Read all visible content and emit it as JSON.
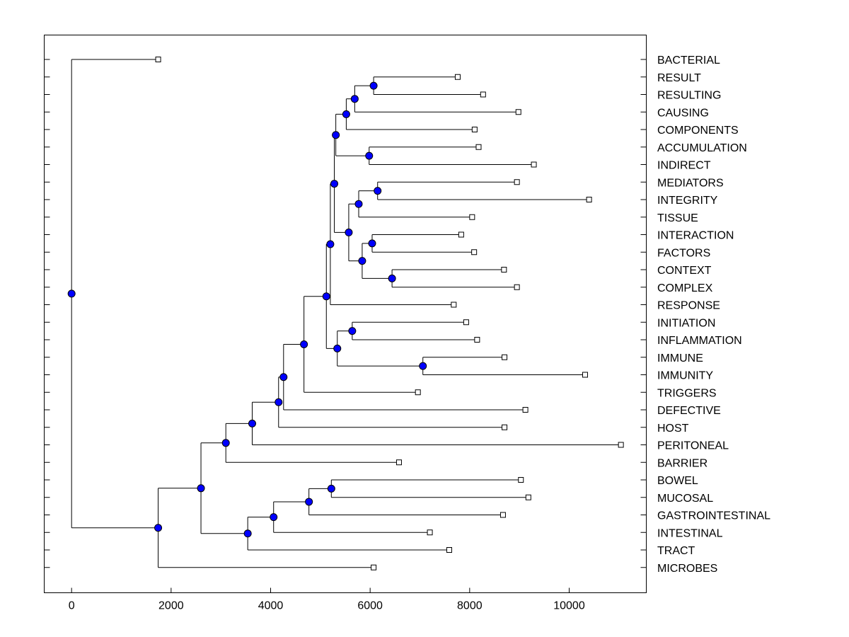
{
  "chart_data": {
    "type": "dendrogram",
    "orientation": "horizontal",
    "xlim": [
      -550,
      11550
    ],
    "xticks": [
      0,
      2000,
      4000,
      6000,
      8000,
      10000
    ],
    "xtick_labels": [
      "0",
      "2000",
      "4000",
      "6000",
      "8000",
      "10000"
    ],
    "leaves": [
      {
        "label": "BACTERIAL",
        "x": 1740
      },
      {
        "label": "RESULT",
        "x": 7760
      },
      {
        "label": "RESULTING",
        "x": 8270
      },
      {
        "label": "CAUSING",
        "x": 8980
      },
      {
        "label": "COMPONENTS",
        "x": 8100
      },
      {
        "label": "ACCUMULATION",
        "x": 8180
      },
      {
        "label": "INDIRECT",
        "x": 9290
      },
      {
        "label": "MEDIATORS",
        "x": 8950
      },
      {
        "label": "INTEGRITY",
        "x": 10400
      },
      {
        "label": "TISSUE",
        "x": 8050
      },
      {
        "label": "INTERACTION",
        "x": 7830
      },
      {
        "label": "FACTORS",
        "x": 8090
      },
      {
        "label": "CONTEXT",
        "x": 8690
      },
      {
        "label": "COMPLEX",
        "x": 8950
      },
      {
        "label": "RESPONSE",
        "x": 7680
      },
      {
        "label": "INITIATION",
        "x": 7930
      },
      {
        "label": "INFLAMMATION",
        "x": 8150
      },
      {
        "label": "IMMUNE",
        "x": 8700
      },
      {
        "label": "IMMUNITY",
        "x": 10320
      },
      {
        "label": "TRIGGERS",
        "x": 6960
      },
      {
        "label": "DEFECTIVE",
        "x": 9120
      },
      {
        "label": "HOST",
        "x": 8700
      },
      {
        "label": "PERITONEAL",
        "x": 11040
      },
      {
        "label": "BARRIER",
        "x": 6580
      },
      {
        "label": "BOWEL",
        "x": 9030
      },
      {
        "label": "MUCOSAL",
        "x": 9180
      },
      {
        "label": "GASTROINTESTINAL",
        "x": 8670
      },
      {
        "label": "INTESTINAL",
        "x": 7200
      },
      {
        "label": "TRACT",
        "x": 7590
      },
      {
        "label": "MICROBES",
        "x": 6070
      }
    ],
    "merges": [
      {
        "id": "n1",
        "x": 6070,
        "children": [
          "RESULT",
          "RESULTING"
        ]
      },
      {
        "id": "n2",
        "x": 5690,
        "children": [
          "n1",
          "CAUSING"
        ]
      },
      {
        "id": "n3",
        "x": 5520,
        "children": [
          "n2",
          "COMPONENTS"
        ]
      },
      {
        "id": "n4",
        "x": 5980,
        "children": [
          "ACCUMULATION",
          "INDIRECT"
        ]
      },
      {
        "id": "n5",
        "x": 5310,
        "children": [
          "n3",
          "n4"
        ]
      },
      {
        "id": "n6",
        "x": 6150,
        "children": [
          "MEDIATORS",
          "INTEGRITY"
        ]
      },
      {
        "id": "n7",
        "x": 5770,
        "children": [
          "n6",
          "TISSUE"
        ]
      },
      {
        "id": "n8",
        "x": 6040,
        "children": [
          "INTERACTION",
          "FACTORS"
        ]
      },
      {
        "id": "n9",
        "x": 6440,
        "children": [
          "CONTEXT",
          "COMPLEX"
        ]
      },
      {
        "id": "n10",
        "x": 5840,
        "children": [
          "n8",
          "n9"
        ]
      },
      {
        "id": "n11",
        "x": 5570,
        "children": [
          "n7",
          "n10"
        ]
      },
      {
        "id": "n12",
        "x": 5280,
        "children": [
          "n5",
          "n11"
        ]
      },
      {
        "id": "n13",
        "x": 5200,
        "children": [
          "n12",
          "RESPONSE"
        ]
      },
      {
        "id": "n14",
        "x": 5640,
        "children": [
          "INITIATION",
          "INFLAMMATION"
        ]
      },
      {
        "id": "n15",
        "x": 7060,
        "children": [
          "IMMUNE",
          "IMMUNITY"
        ]
      },
      {
        "id": "n16",
        "x": 5340,
        "children": [
          "n14",
          "n15"
        ]
      },
      {
        "id": "n17",
        "x": 5120,
        "children": [
          "n13",
          "n16"
        ]
      },
      {
        "id": "n18",
        "x": 4670,
        "children": [
          "n17",
          "TRIGGERS"
        ]
      },
      {
        "id": "n19",
        "x": 4260,
        "children": [
          "n18",
          "DEFECTIVE"
        ]
      },
      {
        "id": "n20",
        "x": 4160,
        "children": [
          "n19",
          "HOST"
        ]
      },
      {
        "id": "n21",
        "x": 3630,
        "children": [
          "n20",
          "PERITONEAL"
        ]
      },
      {
        "id": "n22",
        "x": 3100,
        "children": [
          "n21",
          "BARRIER"
        ]
      },
      {
        "id": "n23",
        "x": 5220,
        "children": [
          "BOWEL",
          "MUCOSAL"
        ]
      },
      {
        "id": "n24",
        "x": 4770,
        "children": [
          "n23",
          "GASTROINTESTINAL"
        ]
      },
      {
        "id": "n25",
        "x": 4060,
        "children": [
          "n24",
          "INTESTINAL"
        ]
      },
      {
        "id": "n26",
        "x": 3540,
        "children": [
          "n25",
          "TRACT"
        ]
      },
      {
        "id": "n27",
        "x": 2600,
        "children": [
          "n22",
          "n26"
        ]
      },
      {
        "id": "n28",
        "x": 1740,
        "children": [
          "n27",
          "MICROBES"
        ]
      },
      {
        "id": "root",
        "x": 0,
        "children": [
          "BACTERIAL",
          "n28"
        ]
      }
    ],
    "colors": {
      "node_fill": "#0000ff",
      "line": "#000000",
      "leaf_fill": "#ffffff"
    }
  }
}
